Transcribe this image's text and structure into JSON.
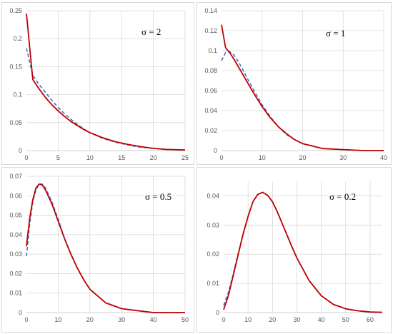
{
  "colors": {
    "exact": "#c00000",
    "approx": "#4472c4",
    "grid": "#d9d9d9"
  },
  "chart_data": [
    {
      "type": "line",
      "annotation": "σ = 2",
      "xlim": [
        0,
        25
      ],
      "ylim": [
        0,
        0.25
      ],
      "x_ticks": [
        "0",
        "5",
        "10",
        "15",
        "20",
        "25"
      ],
      "y_ticks": [
        "0",
        "0.05",
        "0.1",
        "0.15",
        "0.2",
        "0.25"
      ],
      "series": [
        {
          "style": "solid",
          "color": "#c00000",
          "x": [
            0,
            1,
            2,
            3,
            4,
            5,
            6,
            7,
            8,
            9,
            10,
            12,
            14,
            16,
            18,
            20,
            22,
            25
          ],
          "y": [
            0.245,
            0.127,
            0.11,
            0.095,
            0.082,
            0.071,
            0.061,
            0.052,
            0.045,
            0.038,
            0.032,
            0.023,
            0.016,
            0.011,
            0.007,
            0.004,
            0.002,
            0.001
          ]
        },
        {
          "style": "dashed",
          "color": "#4472c4",
          "x": [
            0,
            1,
            2,
            3,
            4,
            5,
            6,
            7,
            8,
            9,
            10,
            12,
            14,
            16,
            18,
            20,
            22,
            25
          ],
          "y": [
            0.183,
            0.134,
            0.118,
            0.104,
            0.09,
            0.077,
            0.066,
            0.056,
            0.047,
            0.039,
            0.032,
            0.022,
            0.015,
            0.01,
            0.006,
            0.004,
            0.002,
            0.001
          ]
        }
      ]
    },
    {
      "type": "line",
      "annotation": "σ = 1",
      "xlim": [
        0,
        40
      ],
      "ylim": [
        0,
        0.14
      ],
      "x_ticks": [
        "0",
        "10",
        "20",
        "30",
        "40"
      ],
      "y_ticks": [
        "0",
        "0.02",
        "0.04",
        "0.06",
        "0.08",
        "0.1",
        "0.12",
        "0.14"
      ],
      "series": [
        {
          "style": "solid",
          "color": "#c00000",
          "x": [
            0,
            1,
            2,
            3,
            4,
            5,
            6,
            8,
            10,
            12,
            14,
            16,
            18,
            20,
            25,
            30,
            35,
            40
          ],
          "y": [
            0.126,
            0.103,
            0.098,
            0.092,
            0.085,
            0.078,
            0.071,
            0.057,
            0.044,
            0.033,
            0.024,
            0.017,
            0.011,
            0.007,
            0.002,
            0.001,
            0.0,
            0.0
          ]
        },
        {
          "style": "dashed",
          "color": "#4472c4",
          "x": [
            0,
            1,
            2,
            3,
            4,
            5,
            6,
            8,
            10,
            12,
            14,
            16,
            18,
            20,
            25,
            30,
            35,
            40
          ],
          "y": [
            0.09,
            0.098,
            0.099,
            0.096,
            0.09,
            0.083,
            0.075,
            0.06,
            0.046,
            0.034,
            0.024,
            0.016,
            0.011,
            0.007,
            0.002,
            0.001,
            0.0,
            0.0
          ]
        }
      ]
    },
    {
      "type": "line",
      "annotation": "σ = 0.5",
      "xlim": [
        0,
        50
      ],
      "ylim": [
        0,
        0.07
      ],
      "x_ticks": [
        "0",
        "10",
        "20",
        "30",
        "40",
        "50"
      ],
      "y_ticks": [
        "0",
        "0.01",
        "0.02",
        "0.03",
        "0.04",
        "0.05",
        "0.06",
        "0.07"
      ],
      "series": [
        {
          "style": "solid",
          "color": "#c00000",
          "x": [
            0,
            1,
            2,
            3,
            4,
            5,
            6,
            8,
            10,
            12,
            14,
            16,
            18,
            20,
            25,
            30,
            35,
            40,
            45,
            50
          ],
          "y": [
            0.034,
            0.048,
            0.058,
            0.064,
            0.066,
            0.0655,
            0.063,
            0.056,
            0.047,
            0.038,
            0.03,
            0.023,
            0.017,
            0.012,
            0.005,
            0.002,
            0.001,
            0.0,
            0.0,
            0.0
          ]
        },
        {
          "style": "dashed",
          "color": "#4472c4",
          "x": [
            0,
            1,
            2,
            3,
            4,
            5,
            6,
            8,
            10,
            12,
            14,
            16,
            18,
            20,
            25,
            30,
            35,
            40,
            45,
            50
          ],
          "y": [
            0.029,
            0.045,
            0.057,
            0.063,
            0.066,
            0.066,
            0.064,
            0.057,
            0.048,
            0.038,
            0.03,
            0.023,
            0.017,
            0.012,
            0.005,
            0.002,
            0.001,
            0.0,
            0.0,
            0.0
          ]
        }
      ]
    },
    {
      "type": "line",
      "annotation": "σ = 0.2",
      "xlim": [
        0,
        65
      ],
      "ylim": [
        0,
        0.045
      ],
      "x_ticks": [
        "0",
        "10",
        "20",
        "30",
        "40",
        "50",
        "60"
      ],
      "y_ticks": [
        "0",
        "0.01",
        "0.02",
        "0.03",
        "0.04"
      ],
      "series": [
        {
          "style": "solid",
          "color": "#c00000",
          "x": [
            0,
            2,
            4,
            6,
            8,
            10,
            12,
            14,
            16,
            18,
            20,
            22,
            24,
            26,
            28,
            30,
            35,
            40,
            45,
            50,
            55,
            60,
            65
          ],
          "y": [
            0.001,
            0.006,
            0.013,
            0.02,
            0.027,
            0.033,
            0.038,
            0.0405,
            0.0412,
            0.0402,
            0.038,
            0.0345,
            0.0305,
            0.0265,
            0.0225,
            0.0187,
            0.011,
            0.0058,
            0.0028,
            0.0013,
            0.0006,
            0.0002,
            0.0001
          ]
        },
        {
          "style": "dashed",
          "color": "#4472c4",
          "x": [
            0,
            2,
            4,
            6,
            8,
            10,
            12,
            14,
            16,
            18,
            20,
            22,
            24,
            26,
            28,
            30,
            35,
            40,
            45,
            50,
            55,
            60,
            65
          ],
          "y": [
            0.0025,
            0.007,
            0.0135,
            0.0205,
            0.027,
            0.033,
            0.038,
            0.0405,
            0.0412,
            0.0402,
            0.038,
            0.0345,
            0.0305,
            0.0265,
            0.0225,
            0.0187,
            0.011,
            0.0058,
            0.0028,
            0.0013,
            0.0006,
            0.0002,
            0.0001
          ]
        }
      ]
    }
  ]
}
